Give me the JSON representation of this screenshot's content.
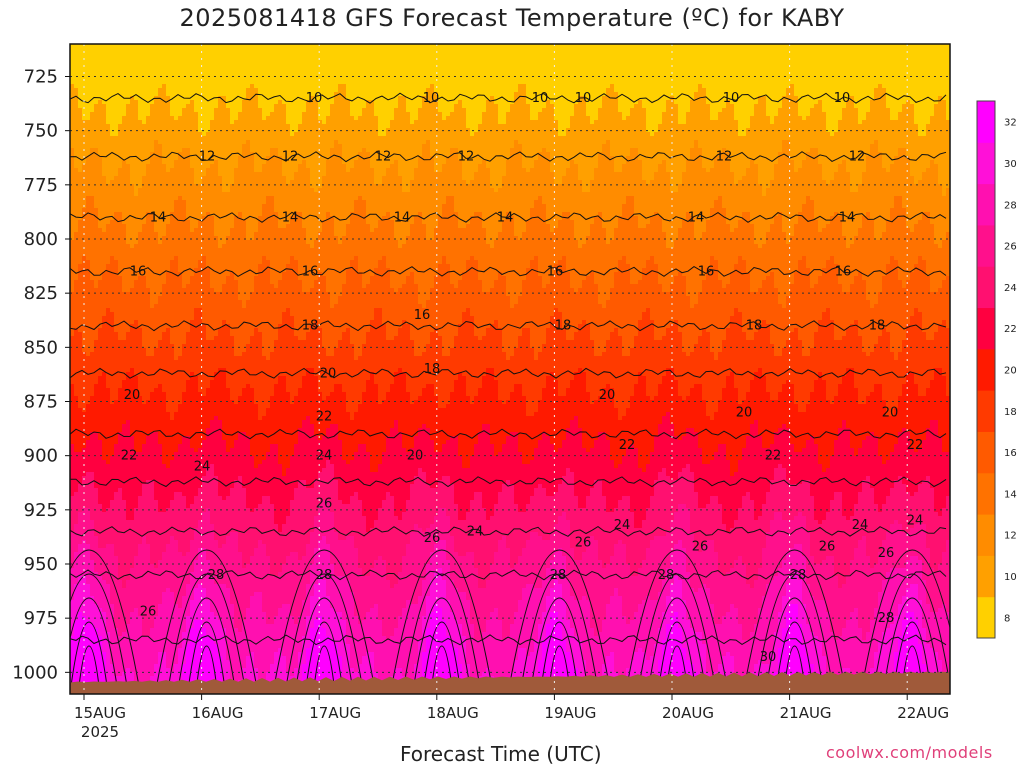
{
  "chart_data": {
    "type": "heatmap",
    "title": "2025081418 GFS Forecast Temperature (ºC) for KABY",
    "xlabel": "Forecast Time (UTC)",
    "ylabel": "",
    "credit": "coolwx.com/models",
    "y_axis": {
      "ticks": [
        "725",
        "750",
        "775",
        "800",
        "825",
        "850",
        "875",
        "900",
        "925",
        "950",
        "975",
        "1000"
      ],
      "ylim": [
        710,
        1010
      ],
      "inverted": true
    },
    "x_axis": {
      "ticks": [
        "15AUG",
        "16AUG",
        "17AUG",
        "18AUG",
        "19AUG",
        "20AUG",
        "21AUG",
        "22AUG"
      ],
      "sub_label": "2025"
    },
    "colorbar": {
      "levels": [
        8,
        10,
        12,
        14,
        16,
        18,
        20,
        22,
        24,
        26,
        28,
        30,
        32
      ],
      "colors": [
        "#ffd000",
        "#ffa000",
        "#ff8c00",
        "#ff7200",
        "#ff5a00",
        "#ff3a00",
        "#ff1a00",
        "#ff0040",
        "#ff1070",
        "#ff108c",
        "#ff10b0",
        "#ff10d8",
        "#ff00ff"
      ]
    },
    "grid": true,
    "isotherms": [
      {
        "value": 10,
        "pressure_hPa": 735
      },
      {
        "value": 12,
        "pressure_hPa": 762
      },
      {
        "value": 14,
        "pressure_hPa": 790
      },
      {
        "value": 16,
        "pressure_hPa": 815
      },
      {
        "value": 18,
        "pressure_hPa": 840
      },
      {
        "value": 20,
        "pressure_hPa": 862
      },
      {
        "value": 22,
        "pressure_hPa": 890
      },
      {
        "value": 24,
        "pressure_hPa": 912
      },
      {
        "value": 26,
        "pressure_hPa": 935
      },
      {
        "value": 28,
        "pressure_hPa": 955
      },
      {
        "value": 30,
        "pressure_hPa": 985
      }
    ],
    "contour_labels": [
      "10",
      "12",
      "14",
      "16",
      "18",
      "20",
      "22",
      "24",
      "26",
      "28",
      "30"
    ]
  }
}
